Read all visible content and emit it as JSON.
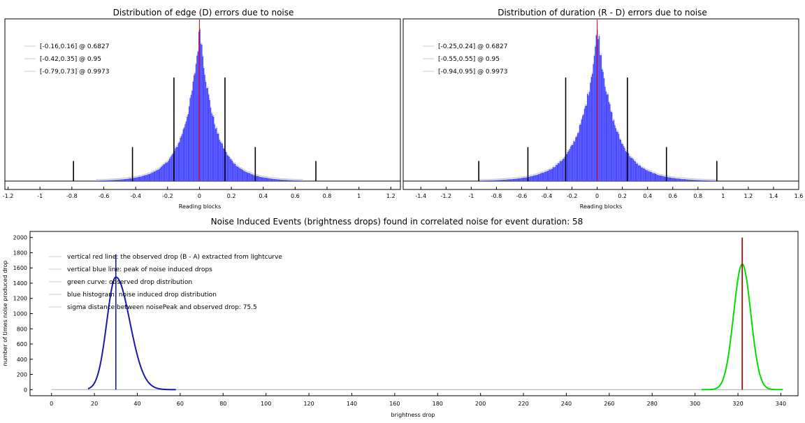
{
  "chart_data": [
    {
      "type": "bar",
      "title": "Distribution of edge (D) errors due to noise",
      "xlabel": "Reading blocks",
      "ylabel": "",
      "xlim": [
        -1.22,
        1.26
      ],
      "ylim": [
        0,
        1.06
      ],
      "x_ticks": [
        "-1.2",
        "-1",
        "-0.8",
        "-0.6",
        "-0.4",
        "-0.2",
        "0",
        "0.2",
        "0.4",
        "0.6",
        "0.8",
        "1",
        "1.2"
      ],
      "x_tick_values": [
        -1.2,
        -1,
        -0.8,
        -0.6,
        -0.4,
        -0.2,
        0,
        0.2,
        0.4,
        0.6,
        0.8,
        1,
        1.2
      ],
      "y_ticks": [],
      "legend_placement": "top-left",
      "legend": [
        "[-0.16,0.16] @ 0.6827",
        "[-0.42,0.35] @ 0.95",
        "[-0.79,0.73] @ 0.9973"
      ],
      "histogram": {
        "center": 0.0,
        "scale": 0.125,
        "peak": 1.0,
        "shape": "laplace-like",
        "color": "#4a4aff"
      },
      "red_line": 0.0,
      "confidence_markers": [
        {
          "x": -0.16,
          "height": 0.67
        },
        {
          "x": 0.16,
          "height": 0.67
        },
        {
          "x": -0.42,
          "height": 0.22
        },
        {
          "x": 0.35,
          "height": 0.22
        },
        {
          "x": -0.79,
          "height": 0.13
        },
        {
          "x": 0.73,
          "height": 0.13
        }
      ]
    },
    {
      "type": "bar",
      "title": "Distribution of duration (R - D) errors due to noise",
      "xlabel": "Reading blocks",
      "ylabel": "",
      "xlim": [
        -1.54,
        1.6
      ],
      "ylim": [
        0,
        1.06
      ],
      "x_ticks": [
        "-1.4",
        "-1.2",
        "-1",
        "-0.8",
        "-0.6",
        "-0.4",
        "-0.2",
        "0",
        "0.2",
        "0.4",
        "0.6",
        "0.8",
        "1",
        "1.2",
        "1.4",
        "1.6"
      ],
      "x_tick_values": [
        -1.4,
        -1.2,
        -1,
        -0.8,
        -0.6,
        -0.4,
        -0.2,
        0,
        0.2,
        0.4,
        0.6,
        0.8,
        1,
        1.2,
        1.4,
        1.6
      ],
      "y_ticks": [],
      "legend_placement": "top-left",
      "legend": [
        "[-0.25,0.24] @ 0.6827",
        "[-0.55,0.55] @ 0.95",
        "[-0.94,0.95] @ 0.9973"
      ],
      "histogram": {
        "center": 0.0,
        "scale": 0.18,
        "peak": 1.0,
        "shape": "laplace-like",
        "color": "#4a4aff"
      },
      "red_line": 0.0,
      "confidence_markers": [
        {
          "x": -0.25,
          "height": 0.67
        },
        {
          "x": 0.24,
          "height": 0.67
        },
        {
          "x": -0.55,
          "height": 0.22
        },
        {
          "x": 0.55,
          "height": 0.22
        },
        {
          "x": -0.94,
          "height": 0.13
        },
        {
          "x": 0.95,
          "height": 0.13
        }
      ]
    },
    {
      "type": "line",
      "title": "Noise Induced Events (brightness drops) found in correlated noise for event duration: 58",
      "xlabel": "brightness drop",
      "ylabel": "number of times noise produced drop",
      "xlim": [
        -10,
        348
      ],
      "ylim": [
        -80,
        2080
      ],
      "x_ticks": [
        "0",
        "20",
        "40",
        "60",
        "80",
        "100",
        "120",
        "140",
        "160",
        "180",
        "200",
        "220",
        "240",
        "260",
        "280",
        "300",
        "320",
        "340"
      ],
      "x_tick_values": [
        0,
        20,
        40,
        60,
        80,
        100,
        120,
        140,
        160,
        180,
        200,
        220,
        240,
        260,
        280,
        300,
        320,
        340
      ],
      "y_ticks": [
        "0",
        "200",
        "400",
        "600",
        "800",
        "1000",
        "1200",
        "1400",
        "1600",
        "1800",
        "2000"
      ],
      "y_tick_values": [
        0,
        200,
        400,
        600,
        800,
        1000,
        1200,
        1400,
        1600,
        1800,
        2000
      ],
      "legend_placement": "top-left",
      "legend": [
        "vertical red line: the observed drop (B - A) extracted from lightcurve",
        "vertical blue line: peak of noise induced drops",
        "green curve: observed drop distribution",
        "blue histogram: noise induced drop distribution",
        "sigma distance between noisePeak and observed drop: 75.5"
      ],
      "noise_histogram": {
        "peak_x": 30,
        "peak_y": 1480,
        "sigma_left": 4.2,
        "sigma_right": 6.5,
        "x_start": 17,
        "x_end": 58,
        "color": "#1a1aaa"
      },
      "observed_curve": {
        "peak_x": 322,
        "peak_y": 1650,
        "sigma": 4.0,
        "x_start": 303,
        "x_end": 341,
        "color": "#00dd00"
      },
      "baseline_range": [
        0,
        341
      ],
      "blue_line_x": 30,
      "blue_line_top": 1780,
      "red_line_x": 322,
      "red_line_top": 2000
    }
  ]
}
